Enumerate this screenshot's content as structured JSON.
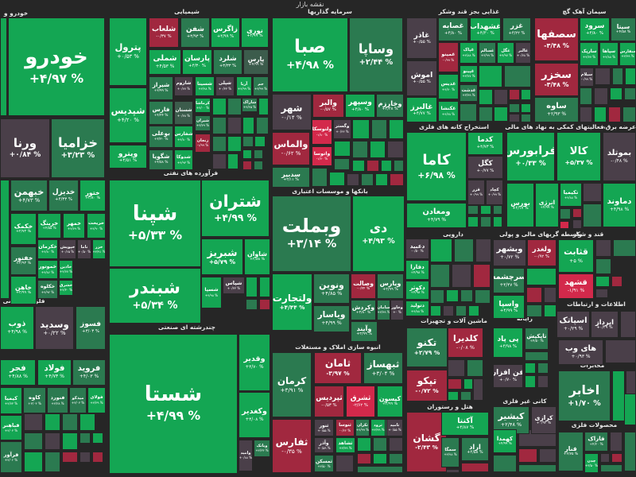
{
  "header": {
    "title": "نقشه بازار"
  },
  "palette": {
    "g": "#14a653",
    "d": "#2b7a50",
    "k": "#4a3f49",
    "r": "#a1283f",
    "R": "#d3294b",
    "s": "#3c5c4c"
  },
  "sectors": [
    {
      "name": "خودرو و"
    },
    {
      "name": "شیمیایی"
    },
    {
      "name": "سرمایه گذاریها"
    },
    {
      "name": "غذایی بجز قند وشکر"
    },
    {
      "name": "سیمان آهک گچ"
    },
    {
      "name": "فرآورده های نفتی"
    },
    {
      "name": "استخراج کانه های فلزی"
    },
    {
      "name": "فعالیتهای کمکی به نهاد های مالی"
    },
    {
      "name": "عرضه برق، گاز، بخار و آب گرم"
    },
    {
      "name": "بانکها و موسسات اعتباری"
    },
    {
      "name": "فلزات اساسی"
    },
    {
      "name": "دارویی"
    },
    {
      "name": "واسطه گریهای مالی و پولی"
    },
    {
      "name": "قند و شکر"
    },
    {
      "name": "چندرشته ای صنعتی"
    },
    {
      "name": "اطلاعات و ارتباطات"
    },
    {
      "name": "ماشین آلات و تجهیزات"
    },
    {
      "name": "رایانه"
    },
    {
      "name": "انبوه سازی املاک و مستغلات"
    },
    {
      "name": "مخابرات"
    },
    {
      "name": "هتل و رستوران"
    },
    {
      "name": "کانی غیر فلزی"
    },
    {
      "name": "محصولات فلزی"
    }
  ],
  "tiles": [
    {
      "name": "خودرو",
      "pct": "+۴/۹۷ %",
      "tone": "g"
    },
    {
      "name": "ورنا",
      "pct": "+۰/۸۴ %",
      "tone": "k"
    },
    {
      "name": "خزامیا",
      "pct": "+۳/۲۳ %",
      "tone": "d"
    },
    {
      "name": "خبهمن",
      "pct": "+۴/۷۳ %",
      "tone": "d"
    },
    {
      "name": "خدیزل",
      "pct": "+۴/۳۳ %",
      "tone": "d"
    },
    {
      "name": "ختور",
      "pct": "+۴/۸۰ %",
      "tone": "g"
    },
    {
      "name": "خکمک",
      "pct": "+۴/۷۳ %",
      "tone": "g"
    },
    {
      "name": "خرینگ",
      "pct": "+۴/۵۵ %",
      "tone": "g"
    },
    {
      "name": "خمهر",
      "pct": "+۴/۷۹ %",
      "tone": "g"
    },
    {
      "name": "خریخت",
      "pct": "+۴/۹۰ %",
      "tone": "g"
    },
    {
      "name": "خکرمان",
      "pct": "+۴/۸۰ %",
      "tone": "g"
    },
    {
      "name": "خپویش",
      "pct": "+۰/۶۵ %",
      "tone": "k"
    },
    {
      "name": "ناما",
      "pct": "+۰/۵۰ %",
      "tone": "k"
    },
    {
      "name": "خزر",
      "pct": "+۴/۹۱ %",
      "tone": "g"
    },
    {
      "name": "خفنور",
      "pct": "+۴/۹۳ %",
      "tone": "d"
    },
    {
      "name": "خموتور",
      "pct": "+۴/۸۶ %",
      "tone": "g"
    },
    {
      "name": "خاذین",
      "pct": "+۴/۷۷ %",
      "tone": "g"
    },
    {
      "name": "خاهن",
      "pct": "+۴/۹۹ %",
      "tone": "g"
    },
    {
      "name": "خکلوه",
      "pct": "+۴/۹۲ %",
      "tone": "d"
    },
    {
      "name": "خشرق",
      "pct": "+۴/۳۰ %",
      "tone": "g"
    },
    {
      "name": "پترول",
      "pct": "+۰/۵۳ %",
      "tone": "g"
    },
    {
      "name": "شپدیس",
      "pct": "+۴/۲۰ %",
      "tone": "g"
    },
    {
      "name": "وپترو",
      "pct": "+۴/۵۱ %",
      "tone": "g"
    },
    {
      "name": "شلعاب",
      "pct": "-۰/۳۷ %",
      "tone": "r"
    },
    {
      "name": "شفن",
      "pct": "+۳/۹۳ %",
      "tone": "d"
    },
    {
      "name": "زاگرس",
      "pct": "+۴/۹۹ %",
      "tone": "g"
    },
    {
      "name": "نوری",
      "pct": "+۴/۹۹ %",
      "tone": "g"
    },
    {
      "name": "شملی",
      "pct": "+۴/۵۳ %",
      "tone": "g"
    },
    {
      "name": "پارسان",
      "pct": "+۴/۳۰ %",
      "tone": "g"
    },
    {
      "name": "شلرد",
      "pct": "+۳/۳۳ %",
      "tone": "d"
    },
    {
      "name": "پارس",
      "pct": "+۴/۹۹ %",
      "tone": "s"
    },
    {
      "name": "شیراز",
      "pct": "+۳/۹۹ %",
      "tone": "d"
    },
    {
      "name": "شاروم",
      "pct": "+۰/۷۷ %",
      "tone": "k"
    },
    {
      "name": "شسینا",
      "pct": "+۴/۹۸ %",
      "tone": "g"
    },
    {
      "name": "شپلی",
      "pct": "+۰/۳۳ %",
      "tone": "k"
    },
    {
      "name": "آریا",
      "pct": "+۴/۹۹ %",
      "tone": "g"
    },
    {
      "name": "جم",
      "pct": "+۳/۹۹ %",
      "tone": "d"
    },
    {
      "name": "فارس",
      "pct": "+۴/۴۴ %",
      "tone": "d"
    },
    {
      "name": "شستان",
      "pct": "+۰/۷۸ %",
      "tone": "s"
    },
    {
      "name": "کرماشا",
      "pct": "+۴/۰۰ %",
      "tone": "g"
    },
    {
      "name": "شیران",
      "pct": "+۳/۷۹ %",
      "tone": "d"
    },
    {
      "name": "زنجان",
      "pct": "-۱/۹۹ %",
      "tone": "r"
    },
    {
      "name": "بوعلی",
      "pct": "+۳/۳۰ %",
      "tone": "d"
    },
    {
      "name": "شفارس",
      "pct": "+۴/۸۰ %",
      "tone": "g"
    },
    {
      "name": "شگویا",
      "pct": "+۴/۵۸ %",
      "tone": "d"
    },
    {
      "name": "شدوکا",
      "pct": "+۴/۹۳ %",
      "tone": "g"
    },
    {
      "name": "شاراک",
      "pct": "+۴/۴۵ %",
      "tone": "d"
    },
    {
      "name": "شپنا",
      "pct": "+۵/۳۳ %",
      "tone": "g"
    },
    {
      "name": "شتران",
      "pct": "+۴/۹۹ %",
      "tone": "g"
    },
    {
      "name": "شبندر",
      "pct": "+۵/۳۴ %",
      "tone": "g"
    },
    {
      "name": "شبریز",
      "pct": "+۵/۷۹ %",
      "tone": "g"
    },
    {
      "name": "شاوان",
      "pct": "+۴/۸۸ %",
      "tone": "g"
    },
    {
      "name": "شسپا",
      "pct": "+۴/۹۸ %",
      "tone": "g"
    },
    {
      "name": "شپاس",
      "pct": "+۰/۳۳ %",
      "tone": "k"
    },
    {
      "name": "شستا",
      "pct": "+۴/۹۹ %",
      "tone": "g"
    },
    {
      "name": "وقدیر",
      "pct": "+۴/۷۰ %",
      "tone": "g"
    },
    {
      "name": "وکغدیر",
      "pct": "+۴/۰۸ %",
      "tone": "g"
    },
    {
      "name": "وامید",
      "pct": "+۰/۸۸ %",
      "tone": "k"
    },
    {
      "name": "ویانک",
      "pct": "+۴/۳۳ %",
      "tone": "d"
    },
    {
      "name": "صبا",
      "pct": "+۴/۹۸ %",
      "tone": "g"
    },
    {
      "name": "وساپا",
      "pct": "+۲/۴۴ %",
      "tone": "d"
    },
    {
      "name": "شهر",
      "pct": "-۰/۱۴ %",
      "tone": "k"
    },
    {
      "name": "والبر",
      "pct": "-۰/۵۷ %",
      "tone": "r"
    },
    {
      "name": "وسپهر",
      "pct": "+۴/۸۰ %",
      "tone": "g"
    },
    {
      "name": "وخارزم",
      "pct": "+۴/۴۸ %",
      "tone": "d"
    },
    {
      "name": "والماس",
      "pct": "-۰/۶۲ %",
      "tone": "r"
    },
    {
      "name": "ولتوسکا",
      "pct": "-۱/۸۰ %",
      "tone": "R"
    },
    {
      "name": "وگستر",
      "pct": "+۰/۴۳ %",
      "tone": "k"
    },
    {
      "name": "واتوسا",
      "pct": "-۱/۷۰ %",
      "tone": "R"
    },
    {
      "name": "سدبیر",
      "pct": "+۴/۱۱ %",
      "tone": "d"
    },
    {
      "name": "وبملت",
      "pct": "+۳/۱۴ %",
      "tone": "d"
    },
    {
      "name": "دی",
      "pct": "+۴/۹۳ %",
      "tone": "g"
    },
    {
      "name": "ونوین",
      "pct": "+۴/۸۵ %",
      "tone": "d"
    },
    {
      "name": "ولتجارت",
      "pct": "+۴/۴۴ %",
      "tone": "g"
    },
    {
      "name": "وصالت",
      "pct": "-۰/۲۲ %",
      "tone": "r"
    },
    {
      "name": "ویارس",
      "pct": "+۴/۹۹ %",
      "tone": "d"
    },
    {
      "name": "وکردش",
      "pct": "+۳/۸۰ %",
      "tone": "d"
    },
    {
      "name": "سامان",
      "pct": "+۴/۹۹ %",
      "tone": "d"
    },
    {
      "name": "وخاور",
      "pct": "+۰ %",
      "tone": "k"
    },
    {
      "name": "ویاسار",
      "pct": "+۴/۹۹ %",
      "tone": "d"
    },
    {
      "name": "وآیند",
      "pct": "+۴/۹۹ %",
      "tone": "d"
    },
    {
      "name": "غاذر",
      "pct": "+۰/۵۵ %",
      "tone": "k"
    },
    {
      "name": "اموش",
      "pct": "+۰/۵۵ %",
      "tone": "k"
    },
    {
      "name": "غالبرز",
      "pct": "+۴/۷۷ %",
      "tone": "g"
    },
    {
      "name": "غصابه",
      "pct": "+۴/۸۰ %",
      "tone": "d"
    },
    {
      "name": "غشهداب",
      "pct": "+۴/۳۰ %",
      "tone": "g"
    },
    {
      "name": "غزر",
      "pct": "+۴/۲۲ %",
      "tone": "d"
    },
    {
      "name": "غمینو",
      "pct": "-۰/۹۹ %",
      "tone": "r"
    },
    {
      "name": "غپاک",
      "pct": "+۴/۸۸ %",
      "tone": "g"
    },
    {
      "name": "غسالم",
      "pct": "+۳/۹۹ %",
      "tone": "d"
    },
    {
      "name": "غگل",
      "pct": "+۴/۹۷ %",
      "tone": "g"
    },
    {
      "name": "غالبر",
      "pct": "+۰/۷۸ %",
      "tone": "k"
    },
    {
      "name": "غدیس",
      "pct": "+۴/۷۰ %",
      "tone": "g"
    },
    {
      "name": "غپینو",
      "pct": "+۴/۷۷ %",
      "tone": "g"
    },
    {
      "name": "غدشت",
      "pct": "+۳/۹۹ %",
      "tone": "d"
    },
    {
      "name": "غکنشا",
      "pct": "+۴/۷۸ %",
      "tone": "g"
    },
    {
      "name": "سصفها",
      "pct": "-۳/۴۸ %",
      "tone": "r"
    },
    {
      "name": "سخزر",
      "pct": "-۳/۴۸ %",
      "tone": "r"
    },
    {
      "name": "ساوه",
      "pct": "+۲/۹۳ %",
      "tone": "d"
    },
    {
      "name": "سرود",
      "pct": "+۴/۸۰ %",
      "tone": "g"
    },
    {
      "name": "سیتا",
      "pct": "+۴/۵۸ %",
      "tone": "d"
    },
    {
      "name": "سارپک",
      "pct": "+۴/۷۷ %",
      "tone": "g"
    },
    {
      "name": "سپاها",
      "pct": "+۴/۸۸ %",
      "tone": "g"
    },
    {
      "name": "سفارس",
      "pct": "+۴/۹۹ %",
      "tone": "g"
    },
    {
      "name": "سیلام",
      "pct": "-۰/۹۹ %",
      "tone": "k"
    },
    {
      "name": "کاما",
      "pct": "+۶/۹۸ %",
      "tone": "g"
    },
    {
      "name": "کدما",
      "pct": "+۴/۷۳ %",
      "tone": "g"
    },
    {
      "name": "کگل",
      "pct": "+۰/۷۷ %",
      "tone": "k"
    },
    {
      "name": "قزر",
      "pct": "+۰/۹۹ %",
      "tone": "k"
    },
    {
      "name": "کچاد",
      "pct": "+۰/۹۹ %",
      "tone": "k"
    },
    {
      "name": "ومعادن",
      "pct": "+۴/۷۹ %",
      "tone": "g"
    },
    {
      "name": "فرابورس",
      "pct": "+۰/۳۳ %",
      "tone": "g"
    },
    {
      "name": "کالا",
      "pct": "+۵/۳۷ %",
      "tone": "g"
    },
    {
      "name": "بورس",
      "pct": "+۴/۱۷ %",
      "tone": "g"
    },
    {
      "name": "انرژی",
      "pct": "+۴/۹۹ %",
      "tone": "g"
    },
    {
      "name": "تکیمیا",
      "pct": "+۴/۸۸ %",
      "tone": "g"
    },
    {
      "name": "بموتلد",
      "pct": "-۰/۴۸ %",
      "tone": "k"
    },
    {
      "name": "دماوند",
      "pct": "+۴/۹۸ %",
      "tone": "g"
    },
    {
      "name": "دعبید",
      "pct": "-۰/۵۰ %",
      "tone": "k"
    },
    {
      "name": "دفارا",
      "pct": "+۴/۹۸ %",
      "tone": "g"
    },
    {
      "name": "دکوثر",
      "pct": "+۴/۹۸ %",
      "tone": "g"
    },
    {
      "name": "دتولید",
      "pct": "+۴/۸۸ %",
      "tone": "g"
    },
    {
      "name": "وبشهر",
      "pct": "+۰/۷۲ %",
      "tone": "k"
    },
    {
      "name": "ولغدر",
      "pct": "-۰/۹۲ %",
      "tone": "r"
    },
    {
      "name": "سرچشمه",
      "pct": "+۴/۴۷ %",
      "tone": "d"
    },
    {
      "name": "واسپا",
      "pct": "+۴/۹۹ %",
      "tone": "g"
    },
    {
      "name": "قثابت",
      "pct": "+۵ %",
      "tone": "g"
    },
    {
      "name": "قشهد",
      "pct": "-۱/۹۱ %",
      "tone": "R"
    },
    {
      "name": "اسپاتک",
      "pct": "+۰/۲۹ %",
      "tone": "k"
    },
    {
      "name": "اپرداز",
      "pct": "+۰/۲۹ %",
      "tone": "k"
    },
    {
      "name": "های وب",
      "pct": "+۰/۹۳ %",
      "tone": "k"
    },
    {
      "name": "تکنو",
      "pct": "+۲/۷۹ %",
      "tone": "d"
    },
    {
      "name": "کلدیرا",
      "pct": "-۰/۰۸ %",
      "tone": "r"
    },
    {
      "name": "تپکو",
      "pct": "-۰/۷۲ %",
      "tone": "r"
    },
    {
      "name": "تاپکیش",
      "pct": "+۴/۵۰ %",
      "tone": "d"
    },
    {
      "name": "پی پاد",
      "pct": "+۴/۹۸ %",
      "tone": "g"
    },
    {
      "name": "فن افزار",
      "pct": "+۰/۷۰ %",
      "tone": "k"
    },
    {
      "name": "کرمان",
      "pct": "+۳/۹۱ %",
      "tone": "d"
    },
    {
      "name": "ثفارس",
      "pct": "-۰/۳۵ %",
      "tone": "r"
    },
    {
      "name": "ثامان",
      "pct": "-۳/۹۷ %",
      "tone": "r"
    },
    {
      "name": "ثبهساز",
      "pct": "+۳/۰۴ %",
      "tone": "d"
    },
    {
      "name": "ثپردیس",
      "pct": "-۰/۵۳ %",
      "tone": "r"
    },
    {
      "name": "ثشرق",
      "pct": "-۲/۶۲ %",
      "tone": "R"
    },
    {
      "name": "کیسون",
      "pct": "+۴/۹۹ %",
      "tone": "g"
    },
    {
      "name": "ثنور",
      "pct": "+۰/۵۵ %",
      "tone": "k"
    },
    {
      "name": "ثنوسا",
      "pct": "-۰/۲۲ %",
      "tone": "r"
    },
    {
      "name": "ثکران",
      "pct": "+۴/۹۹ %",
      "tone": "d"
    },
    {
      "name": "ثرود",
      "pct": "+۴/۹۹ %",
      "tone": "g"
    },
    {
      "name": "ثامید",
      "pct": "+۰/۵۵ %",
      "tone": "k"
    },
    {
      "name": "وآذر",
      "pct": "+۰/۵۹ %",
      "tone": "k"
    },
    {
      "name": "ثشاهد",
      "pct": "+۴/۹۹ %",
      "tone": "g"
    },
    {
      "name": "ثمسکن",
      "pct": "+۴/۵۰ %",
      "tone": "d"
    },
    {
      "name": "اخابر",
      "pct": "+۱/۷۰ %",
      "tone": "d"
    },
    {
      "name": "گشان",
      "pct": "-۲/۴۳ %",
      "tone": "r"
    },
    {
      "name": "آکنتا",
      "pct": "+۴/۸۷ %",
      "tone": "g"
    },
    {
      "name": "سمگا",
      "pct": "+۴/۹۸ %",
      "tone": "d"
    },
    {
      "name": "اراد",
      "pct": "+۴/۵۸ %",
      "tone": "d"
    },
    {
      "name": "کیشیر",
      "pct": "+۲/۴۸ %",
      "tone": "d"
    },
    {
      "name": "کرازی",
      "pct": "+۰/۹۲ %",
      "tone": "k"
    },
    {
      "name": "کهمدا",
      "pct": "+۴/۹۹ %",
      "tone": "g"
    },
    {
      "name": "فنار",
      "pct": "+۲/۷۵ %",
      "tone": "d"
    },
    {
      "name": "فاراک",
      "pct": "+۴/۲۰ %",
      "tone": "d"
    },
    {
      "name": "چدن",
      "pct": "+۳/۵۰ %",
      "tone": "g"
    },
    {
      "name": "ذوب",
      "pct": "+۴/۹۸ %",
      "tone": "g"
    },
    {
      "name": "وسدید",
      "pct": "+۰/۲۲ %",
      "tone": "k"
    },
    {
      "name": "فسوز",
      "pct": "+۳/۰۳ %",
      "tone": "d"
    },
    {
      "name": "فجر",
      "pct": "+۴/۸۸ %",
      "tone": "g"
    },
    {
      "name": "فولاد",
      "pct": "+۴/۷۳ %",
      "tone": "g"
    },
    {
      "name": "فروید",
      "pct": "+۴/۰۳ %",
      "tone": "d"
    },
    {
      "name": "کیمیا",
      "pct": "+۴/۷۳ %",
      "tone": "g"
    },
    {
      "name": "کاوه",
      "pct": "+۳/۰۳ %",
      "tone": "d"
    },
    {
      "name": "فنورد",
      "pct": "+۴/۳۸ %",
      "tone": "d"
    },
    {
      "name": "میدکو",
      "pct": "+۳/۰۳ %",
      "tone": "d"
    },
    {
      "name": "فولای",
      "pct": "+۴/۳۹ %",
      "tone": "g"
    },
    {
      "name": "فباهنر",
      "pct": "+۴/۰۳ %",
      "tone": "g"
    },
    {
      "name": "فرآور",
      "pct": "+۴/۰۲ %",
      "tone": "d"
    }
  ]
}
